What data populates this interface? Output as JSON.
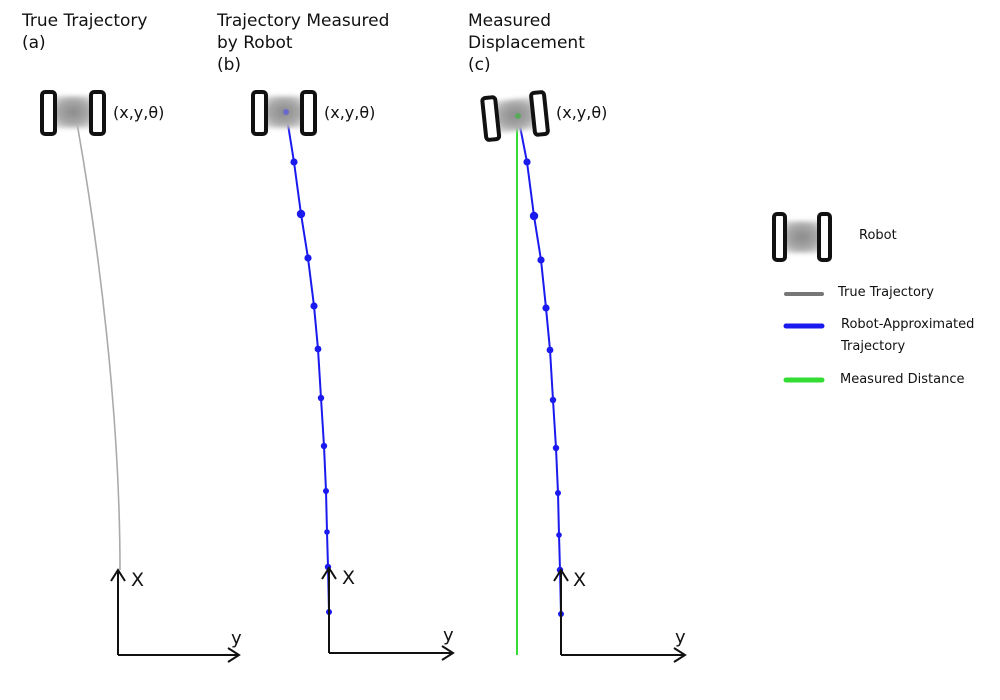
{
  "panels": [
    {
      "title_line1": "True Trajectory",
      "title_line2": "",
      "sub_label": "(a)",
      "pose_label": "(x,y,θ)",
      "axis_x_label": "X",
      "axis_y_label": "y"
    },
    {
      "title_line1": "Trajectory Measured",
      "title_line2": "by Robot",
      "sub_label": "(b)",
      "pose_label": "(x,y,θ)",
      "axis_x_label": "X",
      "axis_y_label": "y"
    },
    {
      "title_line1": "Measured",
      "title_line2": "Displacement",
      "sub_label": "(c)",
      "pose_label": "(x,y,θ)",
      "axis_x_label": "X",
      "axis_y_label": "y"
    }
  ],
  "legend": {
    "robot": "Robot",
    "true_trajectory": "True Trajectory",
    "approx_line1": "Robot-Approximated",
    "approx_line2": "Trajectory",
    "measured_distance": "Measured Distance"
  },
  "colors": {
    "true_trajectory": "#aaaaaa",
    "approx_trajectory": "#1a1aee",
    "measured_distance": "#33dd33",
    "axis": "#111111",
    "robot_wheel": "#111111",
    "robot_body": "#9a9a9a"
  },
  "icons": {
    "robot": "robot-icon",
    "axis": "axis-arrow-icon"
  }
}
